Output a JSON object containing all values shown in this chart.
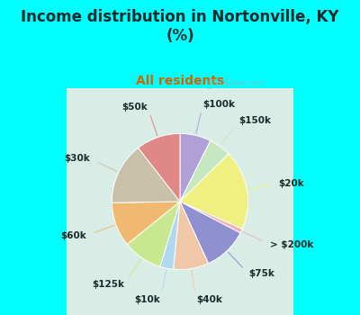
{
  "title": "Income distribution in Nortonville, KY\n(%)",
  "subtitle": "All residents",
  "title_color": "#1a2a2a",
  "subtitle_color": "#cc6600",
  "bg_color": "#00ffff",
  "chart_bg_color": "#d4ede4",
  "slices": [
    {
      "label": "$100k",
      "value": 7,
      "color": "#b0a0d8"
    },
    {
      "label": "$150k",
      "value": 5,
      "color": "#c5e8c0"
    },
    {
      "label": "$20k",
      "value": 18,
      "color": "#f0f080"
    },
    {
      "label": "> $200k",
      "value": 1,
      "color": "#f0b0b8"
    },
    {
      "label": "$75k",
      "value": 10,
      "color": "#9090d0"
    },
    {
      "label": "$40k",
      "value": 8,
      "color": "#f0c8a8"
    },
    {
      "label": "$10k",
      "value": 3,
      "color": "#b0d8f0"
    },
    {
      "label": "$125k",
      "value": 9,
      "color": "#c8e890"
    },
    {
      "label": "$60k",
      "value": 10,
      "color": "#f0b870"
    },
    {
      "label": "$30k",
      "value": 14,
      "color": "#c8c0a8"
    },
    {
      "label": "$50k",
      "value": 10,
      "color": "#e08888"
    }
  ],
  "label_fontsize": 7.5,
  "title_fontsize": 12,
  "subtitle_fontsize": 10,
  "watermark": "City-Data.com"
}
